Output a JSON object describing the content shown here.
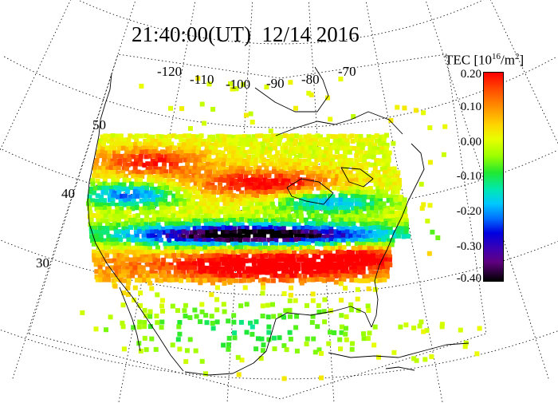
{
  "title": "21:40:00(UT)  12/14 2016",
  "colorbar": {
    "label_main": "TEC [10",
    "label_exp": "16",
    "label_unit": "/m",
    "label_unit_exp": "2",
    "label_close": "]",
    "ticks": [
      "0.20",
      "0.10",
      "0.00",
      "-0.10",
      "-0.20",
      "-0.30",
      "-0.40"
    ],
    "range": [
      -0.4,
      0.2
    ],
    "colors": [
      "#000000",
      "#600080",
      "#0000e0",
      "#0070ff",
      "#00c8ff",
      "#00e8b0",
      "#20e830",
      "#9cff00",
      "#e8ff00",
      "#ffd400",
      "#ff8c00",
      "#ff4a00",
      "#ff0000"
    ]
  },
  "longitude_labels": [
    "-120",
    "-110",
    "-100",
    "-90",
    "-80",
    "-70"
  ],
  "latitude_labels": [
    "50",
    "40",
    "30"
  ],
  "map": {
    "projection": "conic",
    "graticule": "dotted",
    "background": "#ffffff",
    "coastline_color": "#000000"
  }
}
